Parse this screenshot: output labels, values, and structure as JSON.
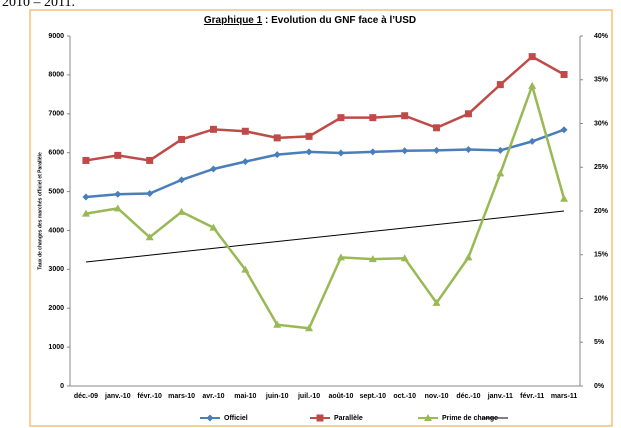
{
  "caption": "2010 – 2011.",
  "chart_data": {
    "type": "line",
    "title_label": "Graphique 1",
    "title": " : Evolution du GNF face à l’USD",
    "y_label": "Taux de changes des marchés officiel et Parallèle",
    "categories": [
      "déc.-09",
      "janv.-10",
      "févr.-10",
      "mars-10",
      "avr.-10",
      "mai-10",
      "juin-10",
      "juil.-10",
      "août-10",
      "sept.-10",
      "oct.-10",
      "nov.-10",
      "déc.-10",
      "janv.-11",
      "févr.-11",
      "mars-11"
    ],
    "series": [
      {
        "name": "Officiel",
        "color": "#4a7ebb",
        "marker": "diamond",
        "axis": "y",
        "values": [
          4860,
          4930,
          4950,
          5300,
          5580,
          5770,
          5950,
          6020,
          5990,
          6020,
          6050,
          6060,
          6080,
          6060,
          6290,
          6590
        ]
      },
      {
        "name": "Parallèle",
        "color": "#be4b48",
        "marker": "square",
        "axis": "y",
        "values": [
          5800,
          5930,
          5800,
          6340,
          6600,
          6550,
          6380,
          6420,
          6900,
          6900,
          6950,
          6640,
          7000,
          7750,
          8470,
          8010
        ]
      },
      {
        "name": "Prime de change",
        "color": "#98b954",
        "marker": "triangle",
        "axis": "y2",
        "values": [
          19.7,
          20.3,
          17.0,
          19.9,
          18.1,
          13.3,
          7.0,
          6.6,
          14.7,
          14.5,
          14.6,
          9.5,
          14.7,
          24.3,
          34.3,
          21.4
        ]
      }
    ],
    "trend": {
      "color": "#000000",
      "axis": "y",
      "values": [
        3190,
        4500
      ]
    },
    "ylim": [
      0,
      9000
    ],
    "yticks": [
      0,
      1000,
      2000,
      3000,
      4000,
      5000,
      6000,
      7000,
      8000,
      9000
    ],
    "y2lim": [
      0,
      40
    ],
    "y2ticks": [
      {
        "value": 0,
        "label": "0%"
      },
      {
        "value": 5,
        "label": "5%"
      },
      {
        "value": 10,
        "label": "10%"
      },
      {
        "value": 15,
        "label": "15%"
      },
      {
        "value": 20,
        "label": "20%"
      },
      {
        "value": 25,
        "label": "25%"
      },
      {
        "value": 30,
        "label": "30%"
      },
      {
        "value": 35,
        "label": "35%"
      },
      {
        "value": 40,
        "label": "40%"
      }
    ],
    "legend": "bottom"
  }
}
